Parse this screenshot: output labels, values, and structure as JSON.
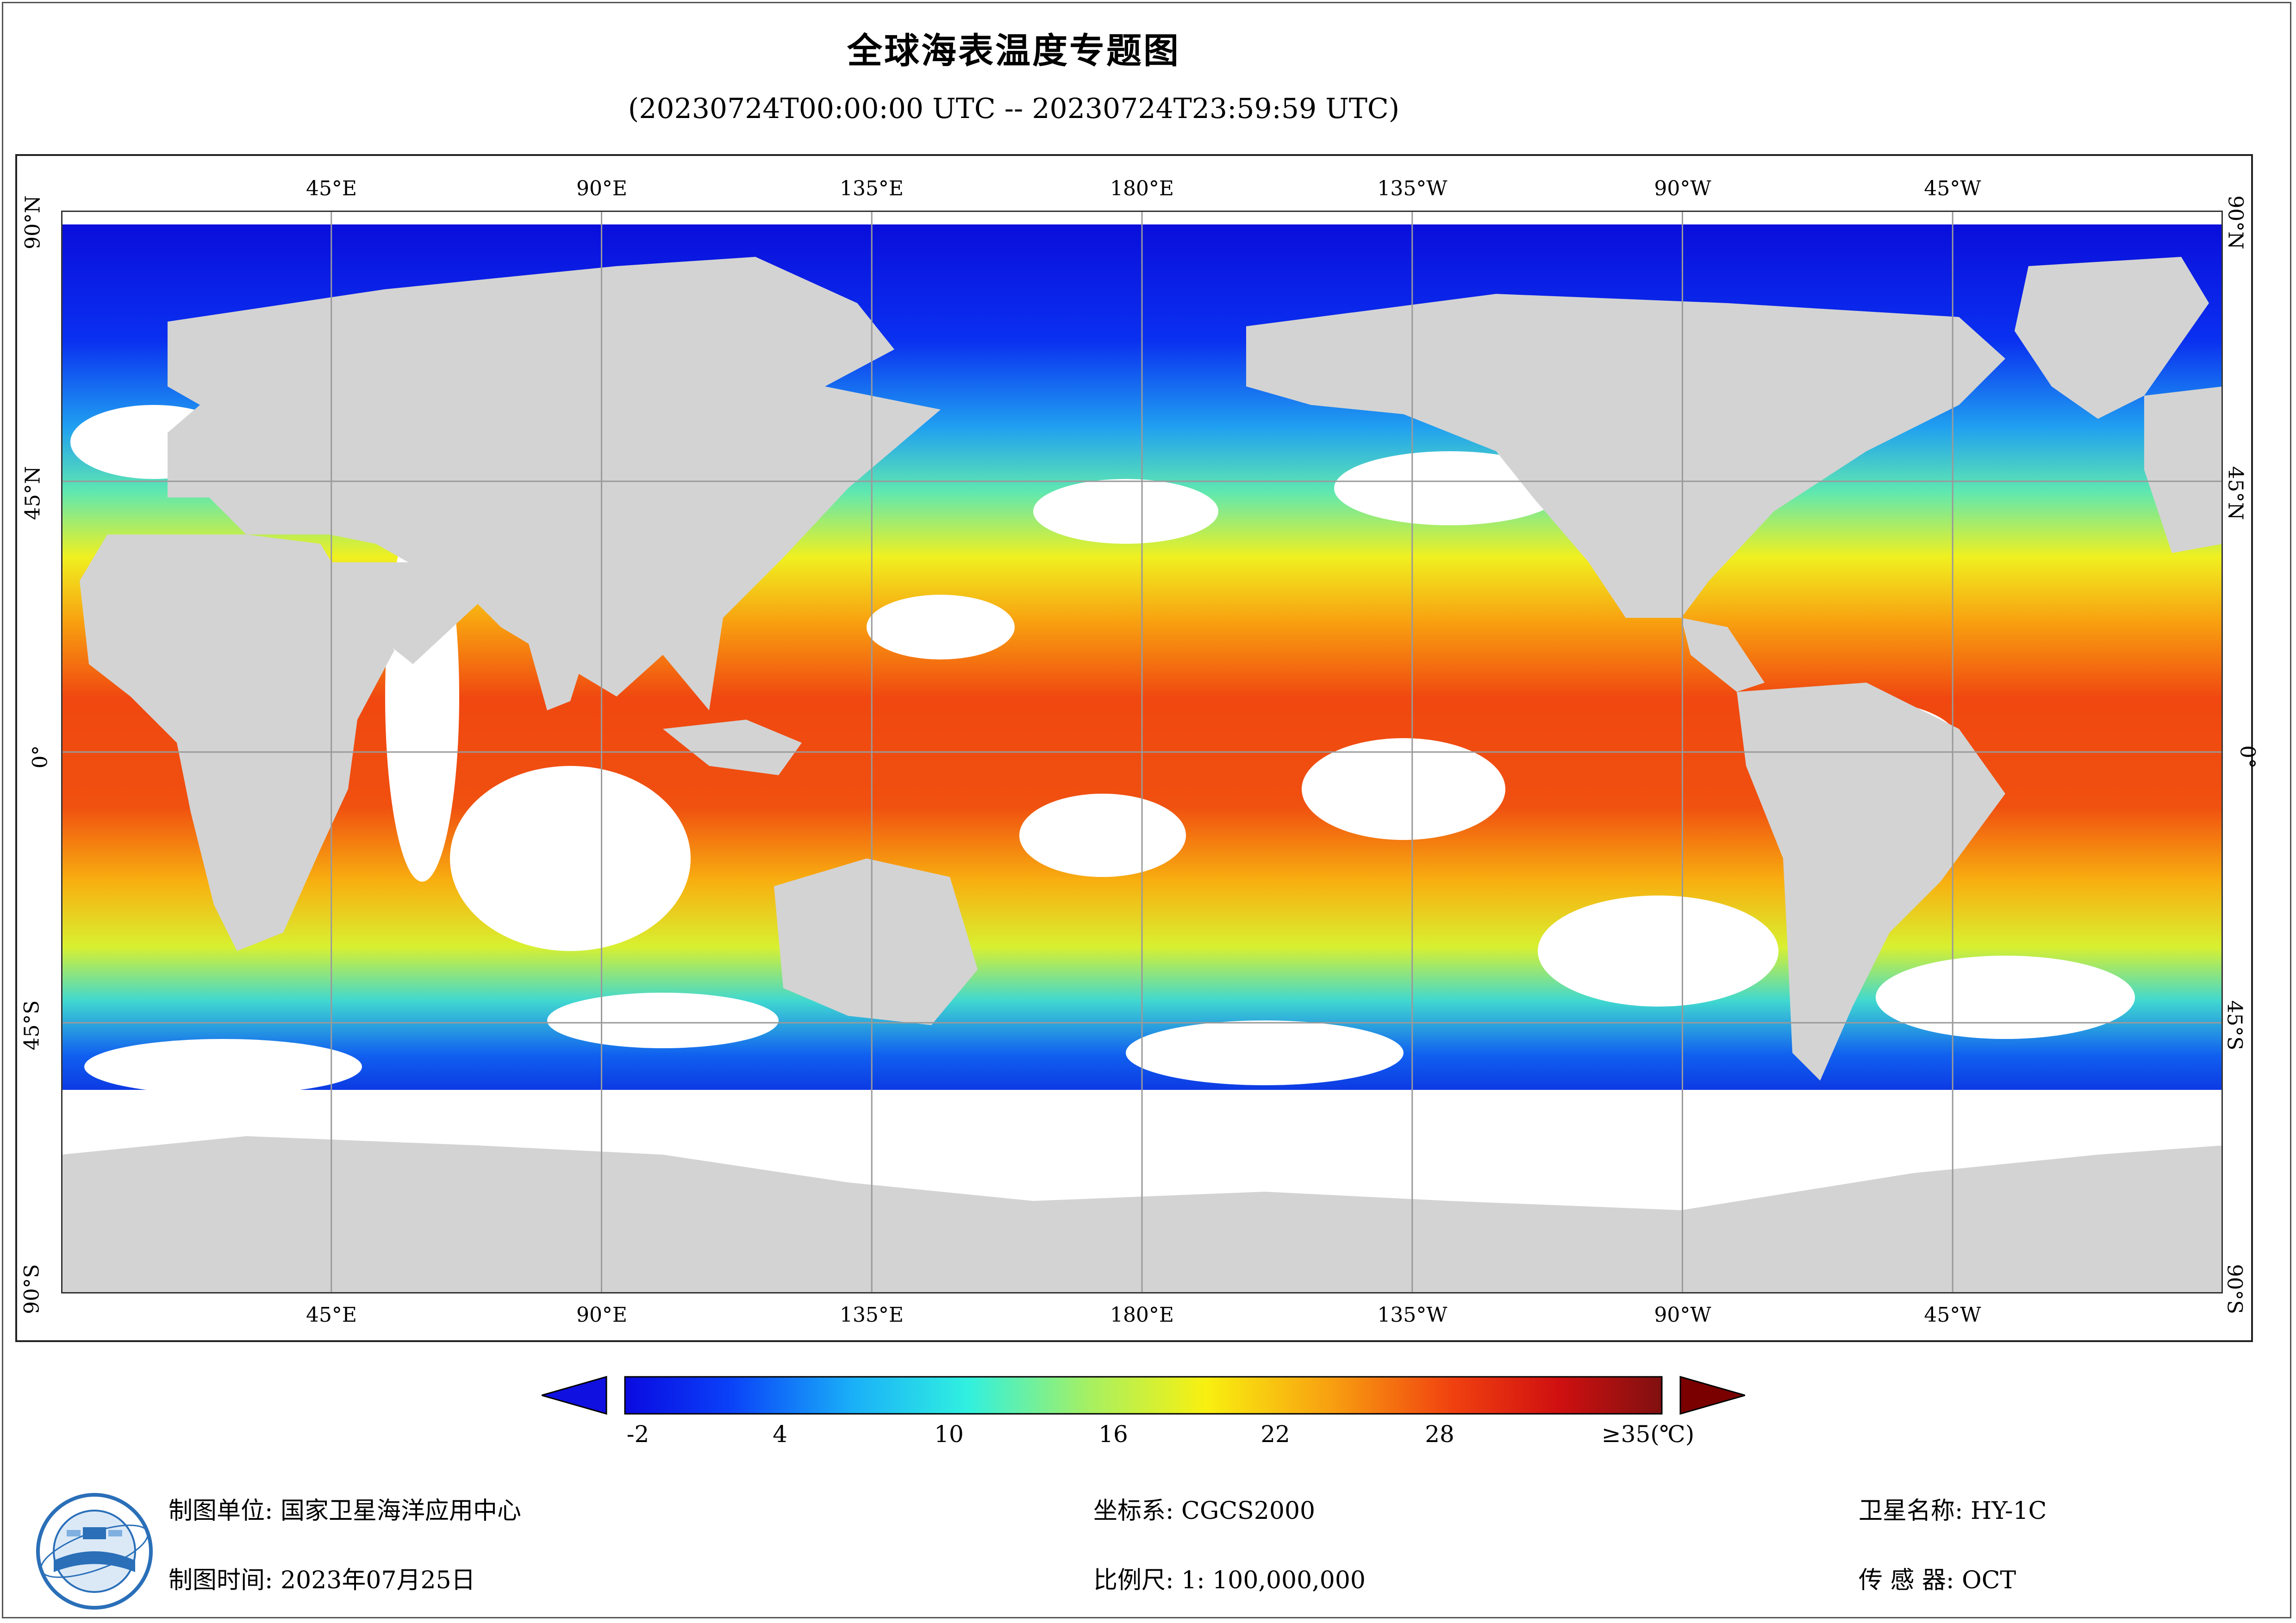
{
  "title": "全球海表温度专题图",
  "subtitle": "(20230724T00:00:00 UTC -- 20230724T23:59:59 UTC)",
  "map": {
    "lon_labels": [
      "45°E",
      "90°E",
      "135°E",
      "180°E",
      "135°W",
      "90°W",
      "45°W"
    ],
    "lat_labels": [
      "90°N",
      "45°N",
      "0°",
      "45°S",
      "90°S"
    ],
    "colors": {
      "land": "#d3d3d3",
      "nodata": "#ffffff",
      "grid": "#9a9a9a"
    }
  },
  "colorbar": {
    "ticks": [
      "-2",
      "4",
      "10",
      "16",
      "22",
      "28",
      "≥35(℃)"
    ],
    "range": [
      -2,
      35
    ],
    "under_color": "#1010e0",
    "over_color": "#7a0000"
  },
  "footer": {
    "org": "制图单位: 国家卫星海洋应用中心",
    "date": "制图时间: 2023年07月25日",
    "crs": "坐标系: CGCS2000",
    "scale": "比例尺: 1: 100,000,000",
    "satellite": "卫星名称: HY-1C",
    "sensor": "传 感 器: OCT"
  }
}
